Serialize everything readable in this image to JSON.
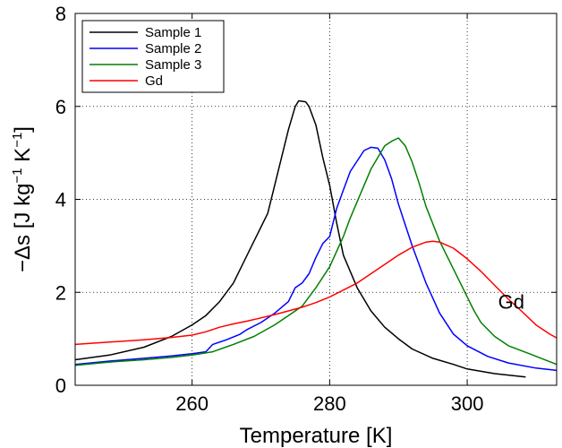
{
  "chart_data": {
    "type": "line",
    "xlabel": "Temperature [K]",
    "ylabel_main": "−Δs [J kg",
    "ylabel_sup1": "−1",
    "ylabel_mid": " K",
    "ylabel_sup2": "−1",
    "ylabel_end": "]",
    "xlim": [
      243,
      313
    ],
    "ylim": [
      0,
      8
    ],
    "xticks": [
      260,
      280,
      300
    ],
    "yticks": [
      0,
      2,
      4,
      6,
      8
    ],
    "grid": true,
    "legend_position": "top-left",
    "annotation": {
      "text": "Gd",
      "x": 304.5,
      "y": 1.8
    },
    "series": [
      {
        "name": "Sample 1",
        "color": "#000000",
        "points": [
          [
            243,
            0.55
          ],
          [
            248,
            0.65
          ],
          [
            253,
            0.82
          ],
          [
            257,
            1.05
          ],
          [
            260,
            1.3
          ],
          [
            262,
            1.5
          ],
          [
            264,
            1.8
          ],
          [
            266,
            2.2
          ],
          [
            268,
            2.8
          ],
          [
            269,
            3.1
          ],
          [
            271,
            3.7
          ],
          [
            272,
            4.3
          ],
          [
            273,
            4.9
          ],
          [
            274,
            5.5
          ],
          [
            275,
            6.0
          ],
          [
            275.5,
            6.12
          ],
          [
            276.5,
            6.1
          ],
          [
            277,
            6.0
          ],
          [
            278,
            5.6
          ],
          [
            279,
            4.9
          ],
          [
            280,
            4.3
          ],
          [
            281,
            3.5
          ],
          [
            282,
            2.8
          ],
          [
            284,
            2.1
          ],
          [
            286,
            1.6
          ],
          [
            288,
            1.25
          ],
          [
            290,
            1.0
          ],
          [
            292,
            0.78
          ],
          [
            295,
            0.58
          ],
          [
            298,
            0.45
          ],
          [
            300,
            0.35
          ],
          [
            304,
            0.25
          ],
          [
            308.5,
            0.18
          ]
        ]
      },
      {
        "name": "Sample 2",
        "color": "#0000ff",
        "points": [
          [
            243,
            0.45
          ],
          [
            248,
            0.52
          ],
          [
            253,
            0.58
          ],
          [
            257,
            0.63
          ],
          [
            260,
            0.68
          ],
          [
            262,
            0.72
          ],
          [
            263,
            0.88
          ],
          [
            265,
            0.98
          ],
          [
            267,
            1.1
          ],
          [
            268,
            1.2
          ],
          [
            270,
            1.35
          ],
          [
            272,
            1.55
          ],
          [
            274,
            1.8
          ],
          [
            275,
            2.1
          ],
          [
            276,
            2.2
          ],
          [
            277,
            2.4
          ],
          [
            278,
            2.75
          ],
          [
            279,
            3.05
          ],
          [
            280,
            3.2
          ],
          [
            281,
            3.8
          ],
          [
            282,
            4.2
          ],
          [
            283,
            4.6
          ],
          [
            285,
            5.05
          ],
          [
            286,
            5.12
          ],
          [
            287,
            5.1
          ],
          [
            288,
            4.85
          ],
          [
            289,
            4.45
          ],
          [
            290,
            3.9
          ],
          [
            292,
            3.0
          ],
          [
            294,
            2.2
          ],
          [
            296,
            1.55
          ],
          [
            298,
            1.1
          ],
          [
            300,
            0.85
          ],
          [
            303,
            0.62
          ],
          [
            306,
            0.48
          ],
          [
            310,
            0.37
          ],
          [
            313,
            0.32
          ]
        ]
      },
      {
        "name": "Sample 3",
        "color": "#008000",
        "points": [
          [
            243,
            0.43
          ],
          [
            248,
            0.5
          ],
          [
            253,
            0.55
          ],
          [
            257,
            0.6
          ],
          [
            260,
            0.65
          ],
          [
            263,
            0.72
          ],
          [
            266,
            0.88
          ],
          [
            269,
            1.05
          ],
          [
            272,
            1.3
          ],
          [
            274,
            1.5
          ],
          [
            276,
            1.7
          ],
          [
            278,
            2.1
          ],
          [
            280,
            2.55
          ],
          [
            282,
            3.2
          ],
          [
            283,
            3.6
          ],
          [
            285,
            4.3
          ],
          [
            286,
            4.65
          ],
          [
            287,
            4.9
          ],
          [
            288,
            5.15
          ],
          [
            289,
            5.25
          ],
          [
            290,
            5.32
          ],
          [
            291,
            5.15
          ],
          [
            292,
            4.8
          ],
          [
            293,
            4.35
          ],
          [
            294,
            3.85
          ],
          [
            296,
            3.1
          ],
          [
            298,
            2.5
          ],
          [
            300,
            1.9
          ],
          [
            301,
            1.6
          ],
          [
            302,
            1.35
          ],
          [
            304,
            1.05
          ],
          [
            306,
            0.85
          ],
          [
            309,
            0.68
          ],
          [
            313,
            0.45
          ]
        ]
      },
      {
        "name": "Gd",
        "color": "#ff0000",
        "points": [
          [
            243,
            0.88
          ],
          [
            248,
            0.93
          ],
          [
            253,
            0.98
          ],
          [
            257,
            1.03
          ],
          [
            260,
            1.08
          ],
          [
            262,
            1.15
          ],
          [
            264,
            1.25
          ],
          [
            266,
            1.32
          ],
          [
            268,
            1.38
          ],
          [
            270,
            1.45
          ],
          [
            272,
            1.52
          ],
          [
            274,
            1.6
          ],
          [
            276,
            1.68
          ],
          [
            278,
            1.78
          ],
          [
            280,
            1.9
          ],
          [
            282,
            2.05
          ],
          [
            284,
            2.2
          ],
          [
            286,
            2.4
          ],
          [
            288,
            2.6
          ],
          [
            290,
            2.8
          ],
          [
            292,
            2.97
          ],
          [
            294,
            3.08
          ],
          [
            295,
            3.1
          ],
          [
            296,
            3.08
          ],
          [
            298,
            2.95
          ],
          [
            300,
            2.72
          ],
          [
            302,
            2.45
          ],
          [
            304,
            2.15
          ],
          [
            306,
            1.85
          ],
          [
            308,
            1.58
          ],
          [
            310,
            1.3
          ],
          [
            312,
            1.1
          ],
          [
            313,
            1.02
          ]
        ]
      }
    ]
  }
}
